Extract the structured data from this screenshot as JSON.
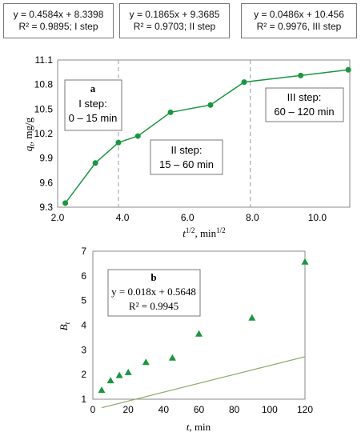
{
  "top_equations": [
    {
      "line1": "y = 0.4584x + 8.3398",
      "line2": "R² = 0.9895; I step"
    },
    {
      "line1": "y = 0.1865x + 9.3685",
      "line2": "R² = 0.9703; II step"
    },
    {
      "line1": "y = 0.0486x + 10.456",
      "line2": "R² = 0.9976, III step"
    }
  ],
  "chart_data": [
    {
      "type": "line",
      "panel_label": "a",
      "xlabel_main": "t",
      "xlabel_sup": "1/2",
      "xlabel_rest": ", min",
      "xlabel_unit_sup": "1/2",
      "ylabel_q": "q",
      "ylabel_sub": "t",
      "ylabel_rest": ", mg/g",
      "xlim": [
        2.0,
        11.0
      ],
      "ylim": [
        9.3,
        11.1
      ],
      "xticks": [
        "2.0",
        "4.0",
        "6.0",
        "8.0",
        "10.0"
      ],
      "yticks": [
        "9.3",
        "9.6",
        "9.9",
        "10.2",
        "10.5",
        "10.8",
        "11.1"
      ],
      "grid": false,
      "series": [
        {
          "color": "#1a9641",
          "x": [
            2.236,
            3.162,
            3.873,
            4.472,
            5.477,
            6.708,
            7.746,
            9.487,
            10.954
          ],
          "y": [
            9.35,
            9.84,
            10.09,
            10.17,
            10.46,
            10.55,
            10.83,
            10.91,
            10.98
          ]
        }
      ],
      "step_dividers": [
        3.873,
        7.936
      ],
      "step_labels": [
        {
          "line1": "I step:",
          "line2": "0 – 15 min"
        },
        {
          "line1": "II step:",
          "line2": "15 – 60 min"
        },
        {
          "line1": "III step:",
          "line2": "60 – 120 min"
        }
      ]
    },
    {
      "type": "scatter",
      "panel_label": "b",
      "equation": "y = 0.018x + 0.5648",
      "r2": "R² = 0.9945",
      "xlabel_main": "t",
      "xlabel_rest": ", min",
      "ylabel_main": "B",
      "ylabel_sub": "t",
      "xlim": [
        0,
        120
      ],
      "ylim": [
        1,
        7
      ],
      "xticks": [
        "0",
        "20",
        "40",
        "60",
        "80",
        "100",
        "120"
      ],
      "yticks": [
        "1",
        "2",
        "3",
        "4",
        "5",
        "6",
        "7"
      ],
      "grid": false,
      "series": [
        {
          "color": "#1a9641",
          "x": [
            5,
            10,
            15,
            20,
            30,
            45,
            60,
            90,
            120
          ],
          "y": [
            1.37,
            1.76,
            1.97,
            2.09,
            2.5,
            2.68,
            3.65,
            4.3,
            6.57
          ]
        }
      ],
      "trendline": {
        "slope": 0.018,
        "intercept": 0.5648,
        "x_range": [
          5,
          120
        ],
        "color": "#8fae6d"
      }
    }
  ]
}
